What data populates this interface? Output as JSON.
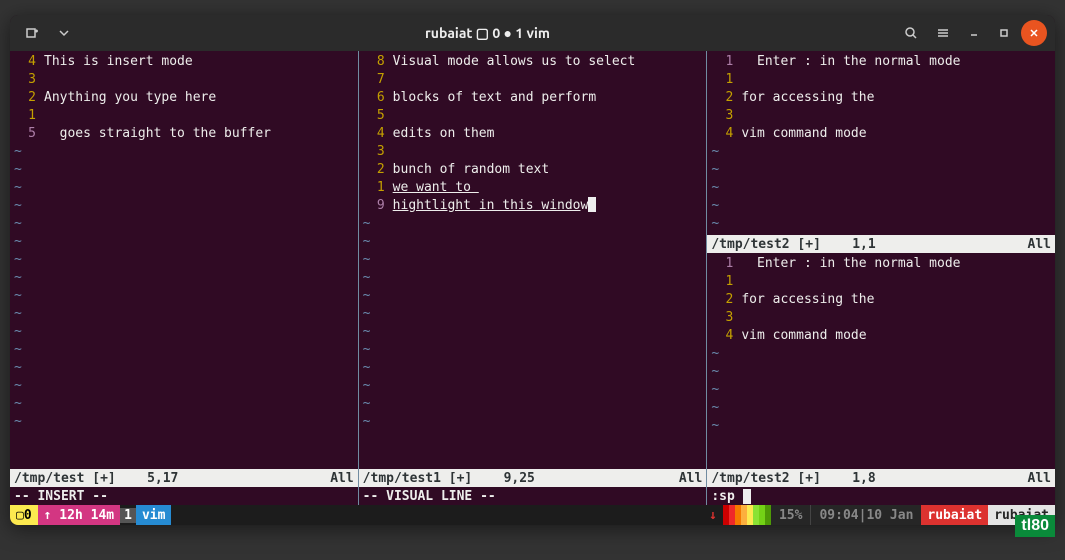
{
  "titlebar": {
    "title": "rubaiat ▢ 0 ● 1 vim"
  },
  "panes": {
    "left": {
      "lines": [
        {
          "num": "4",
          "cur": false,
          "text": "This is insert mode"
        },
        {
          "num": "3",
          "cur": false,
          "text": ""
        },
        {
          "num": "2",
          "cur": false,
          "text": "Anything you type here"
        },
        {
          "num": "1",
          "cur": false,
          "text": ""
        },
        {
          "num": "5",
          "cur": true,
          "text": "  goes straight to the buffer"
        }
      ],
      "status": {
        "file": "/tmp/test [+]",
        "pos": "5,17",
        "pct": "All"
      },
      "mode": "-- INSERT --"
    },
    "mid": {
      "lines": [
        {
          "num": "8",
          "cur": false,
          "text": "Visual mode allows us to select"
        },
        {
          "num": "7",
          "cur": false,
          "text": ""
        },
        {
          "num": "6",
          "cur": false,
          "text": "blocks of text and perform"
        },
        {
          "num": "5",
          "cur": false,
          "text": ""
        },
        {
          "num": "4",
          "cur": false,
          "text": "edits on them"
        },
        {
          "num": "3",
          "cur": false,
          "text": ""
        },
        {
          "num": "2",
          "cur": false,
          "text": "bunch of random text"
        },
        {
          "num": "1",
          "cur": false,
          "text": "we want to ",
          "sel": true
        },
        {
          "num": "9",
          "cur": true,
          "text": "hightlight in this windo",
          "sel": true,
          "tail": "w"
        }
      ],
      "status": {
        "file": "/tmp/test1 [+]",
        "pos": "9,25",
        "pct": "All"
      },
      "mode": "-- VISUAL LINE --"
    },
    "right": {
      "top": {
        "lines": [
          {
            "num": "1",
            "cur": true,
            "text": "  Enter : in the normal mode"
          },
          {
            "num": "1",
            "cur": false,
            "text": ""
          },
          {
            "num": "2",
            "cur": false,
            "text": "for accessing the"
          },
          {
            "num": "3",
            "cur": false,
            "text": ""
          },
          {
            "num": "4",
            "cur": false,
            "text": "vim command mode"
          }
        ],
        "status": {
          "file": "/tmp/test2 [+]",
          "pos": "1,1",
          "pct": "All"
        }
      },
      "bot": {
        "lines": [
          {
            "num": "1",
            "cur": true,
            "text": "  Enter : in the normal mode"
          },
          {
            "num": "1",
            "cur": false,
            "text": ""
          },
          {
            "num": "2",
            "cur": false,
            "text": "for accessing the"
          },
          {
            "num": "3",
            "cur": false,
            "text": ""
          },
          {
            "num": "4",
            "cur": false,
            "text": "vim command mode"
          }
        ],
        "status": {
          "file": "/tmp/test2 [+]",
          "pos": "1,8",
          "pct": "All"
        }
      },
      "cmd": ":sp "
    }
  },
  "tmux": {
    "session_num": "0",
    "uptime": "↑ 12h 14m",
    "win_num": "1",
    "win_name": "vim",
    "arrow": "↓",
    "rainbow": [
      "#cc0000",
      "#ef2929",
      "#f57900",
      "#fcaf3e",
      "#fce94f",
      "#8ae234",
      "#73d216",
      "#4e9a06"
    ],
    "cpu": "15%",
    "time": "09:04",
    "date": "10 Jan",
    "user": "rubaiat",
    "host": "rubaiat"
  },
  "watermark": "tl80"
}
